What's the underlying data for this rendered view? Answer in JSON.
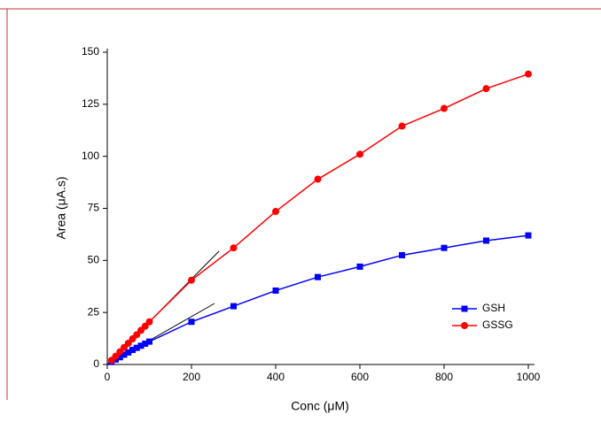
{
  "chart_data": {
    "type": "line",
    "x_label": "Conc (μM)",
    "y_label": "Area (μA.s)",
    "x": [
      10,
      20,
      30,
      40,
      50,
      60,
      70,
      80,
      90,
      100,
      200,
      300,
      400,
      500,
      600,
      700,
      800,
      900,
      1000
    ],
    "series": [
      {
        "name": "GSH",
        "color": "#0000ff",
        "marker": "square",
        "values": [
          1.2,
          2.4,
          3.5,
          4.7,
          5.8,
          7,
          8,
          9,
          10,
          11,
          20.5,
          28,
          35.5,
          42,
          47,
          52.5,
          56,
          59.5,
          62
        ]
      },
      {
        "name": "GSSG",
        "color": "#ff0000",
        "marker": "circle",
        "values": [
          2,
          4,
          6.1,
          8.2,
          10.2,
          12.3,
          14.3,
          16.4,
          18.4,
          20.5,
          40.5,
          56,
          73.5,
          89,
          101,
          114.5,
          123,
          132.5,
          139.5
        ]
      }
    ],
    "xlim": [
      0,
      1000
    ],
    "xticks": [
      0,
      200,
      400,
      600,
      800,
      1000
    ],
    "ylim": [
      0,
      150
    ],
    "yticks": [
      0,
      25,
      50,
      75,
      100,
      125,
      150
    ],
    "legend": "lower right"
  }
}
